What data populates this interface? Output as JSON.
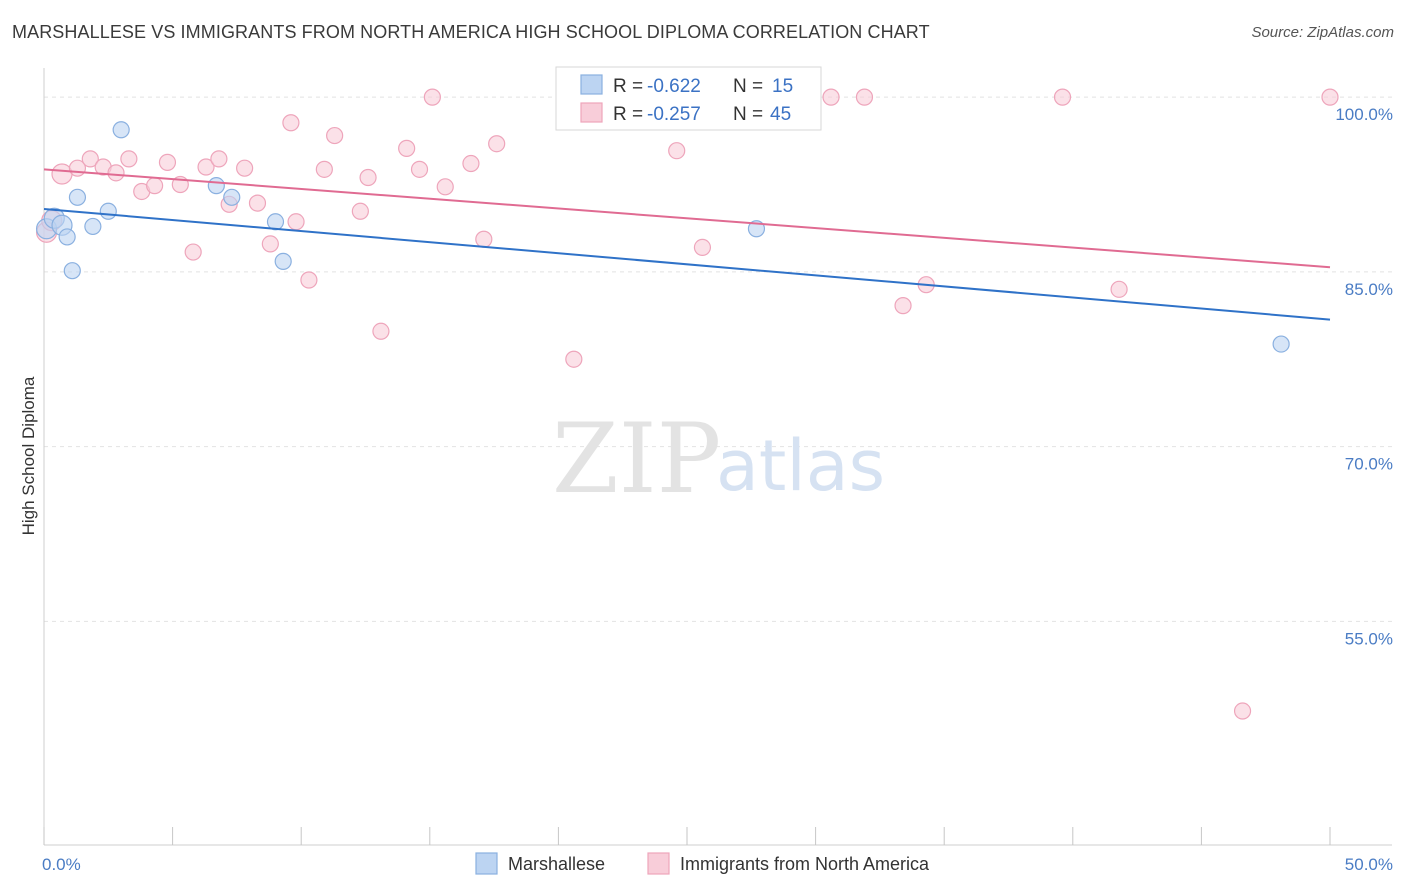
{
  "title": "MARSHALLESE VS IMMIGRANTS FROM NORTH AMERICA HIGH SCHOOL DIPLOMA CORRELATION CHART",
  "source": "Source: ZipAtlas.com",
  "watermark": {
    "zip": "ZIP",
    "atlas": "atlas"
  },
  "colors": {
    "blue_fill": "#bcd4f2",
    "blue_stroke": "#8ab0e0",
    "blue_line": "#2f72c8",
    "pink_fill": "#f8cdd9",
    "pink_stroke": "#eea5bb",
    "pink_line": "#e06b92",
    "tick_text": "#4a7cc4",
    "grid": "#e2e2e2"
  },
  "legend": {
    "rows": [
      {
        "r_label": "R = ",
        "r_value": "-0.622",
        "n_label": "N = ",
        "n_value": "15"
      },
      {
        "r_label": "R = ",
        "r_value": "-0.257",
        "n_label": "N = ",
        "n_value": "45"
      }
    ]
  },
  "chart_data": {
    "type": "scatter",
    "title": "MARSHALLESE VS IMMIGRANTS FROM NORTH AMERICA HIGH SCHOOL DIPLOMA CORRELATION CHART",
    "xlabel": "",
    "ylabel": "High School Diploma",
    "xlim": [
      0,
      50
    ],
    "ylim": [
      35.8,
      102.5
    ],
    "x_tick_labels": [
      {
        "value": 0,
        "label": "0.0%"
      },
      {
        "value": 50,
        "label": "50.0%"
      }
    ],
    "x_minor_ticks": [
      0,
      5,
      10,
      15,
      20,
      25,
      30,
      35,
      40,
      45,
      50
    ],
    "y_ticks": [
      {
        "value": 100,
        "label": "100.0%"
      },
      {
        "value": 85,
        "label": "85.0%"
      },
      {
        "value": 70,
        "label": "70.0%"
      },
      {
        "value": 55,
        "label": "55.0%"
      }
    ],
    "legend_position": "bottom-center",
    "series": [
      {
        "name": "Marshallese",
        "color": "blue",
        "r": -0.622,
        "n": 15,
        "trend": {
          "x": [
            0,
            50
          ],
          "y": [
            90.4,
            80.9
          ]
        },
        "points": [
          {
            "x": 0.1,
            "y": 88.7
          },
          {
            "x": 0.4,
            "y": 89.6
          },
          {
            "x": 0.7,
            "y": 89.0
          },
          {
            "x": 0.9,
            "y": 88.0
          },
          {
            "x": 1.1,
            "y": 85.1
          },
          {
            "x": 1.3,
            "y": 91.4
          },
          {
            "x": 1.9,
            "y": 88.9
          },
          {
            "x": 2.5,
            "y": 90.2
          },
          {
            "x": 3.0,
            "y": 97.2
          },
          {
            "x": 6.7,
            "y": 92.4
          },
          {
            "x": 7.3,
            "y": 91.4
          },
          {
            "x": 9.0,
            "y": 89.3
          },
          {
            "x": 9.3,
            "y": 85.9
          },
          {
            "x": 27.7,
            "y": 88.7
          },
          {
            "x": 48.1,
            "y": 78.8
          }
        ]
      },
      {
        "name": "Immigrants from North America",
        "color": "pink",
        "r": -0.257,
        "n": 45,
        "trend": {
          "x": [
            0,
            50
          ],
          "y": [
            93.8,
            85.4
          ]
        },
        "points": [
          {
            "x": 0.1,
            "y": 88.4
          },
          {
            "x": 0.3,
            "y": 89.4
          },
          {
            "x": 0.7,
            "y": 93.4
          },
          {
            "x": 1.3,
            "y": 93.9
          },
          {
            "x": 1.8,
            "y": 94.7
          },
          {
            "x": 2.3,
            "y": 94.0
          },
          {
            "x": 2.8,
            "y": 93.5
          },
          {
            "x": 3.3,
            "y": 94.7
          },
          {
            "x": 3.8,
            "y": 91.9
          },
          {
            "x": 4.3,
            "y": 92.4
          },
          {
            "x": 4.8,
            "y": 94.4
          },
          {
            "x": 5.3,
            "y": 92.5
          },
          {
            "x": 5.8,
            "y": 86.7
          },
          {
            "x": 6.3,
            "y": 94.0
          },
          {
            "x": 6.8,
            "y": 94.7
          },
          {
            "x": 7.2,
            "y": 90.8
          },
          {
            "x": 7.8,
            "y": 93.9
          },
          {
            "x": 8.3,
            "y": 90.9
          },
          {
            "x": 8.8,
            "y": 87.4
          },
          {
            "x": 9.6,
            "y": 97.8
          },
          {
            "x": 9.8,
            "y": 89.3
          },
          {
            "x": 10.3,
            "y": 84.3
          },
          {
            "x": 10.9,
            "y": 93.8
          },
          {
            "x": 11.3,
            "y": 96.7
          },
          {
            "x": 12.3,
            "y": 90.2
          },
          {
            "x": 12.6,
            "y": 93.1
          },
          {
            "x": 13.1,
            "y": 79.9
          },
          {
            "x": 14.1,
            "y": 95.6
          },
          {
            "x": 14.6,
            "y": 93.8
          },
          {
            "x": 15.1,
            "y": 100.0
          },
          {
            "x": 15.6,
            "y": 92.3
          },
          {
            "x": 16.6,
            "y": 94.3
          },
          {
            "x": 17.1,
            "y": 87.8
          },
          {
            "x": 17.6,
            "y": 96.0
          },
          {
            "x": 20.6,
            "y": 77.5
          },
          {
            "x": 24.6,
            "y": 95.4
          },
          {
            "x": 25.6,
            "y": 87.1
          },
          {
            "x": 30.6,
            "y": 100.0
          },
          {
            "x": 31.9,
            "y": 100.0
          },
          {
            "x": 33.4,
            "y": 82.1
          },
          {
            "x": 34.3,
            "y": 83.9
          },
          {
            "x": 39.6,
            "y": 100.0
          },
          {
            "x": 41.8,
            "y": 83.5
          },
          {
            "x": 46.6,
            "y": 47.3
          },
          {
            "x": 50.0,
            "y": 100.0
          }
        ]
      }
    ]
  }
}
